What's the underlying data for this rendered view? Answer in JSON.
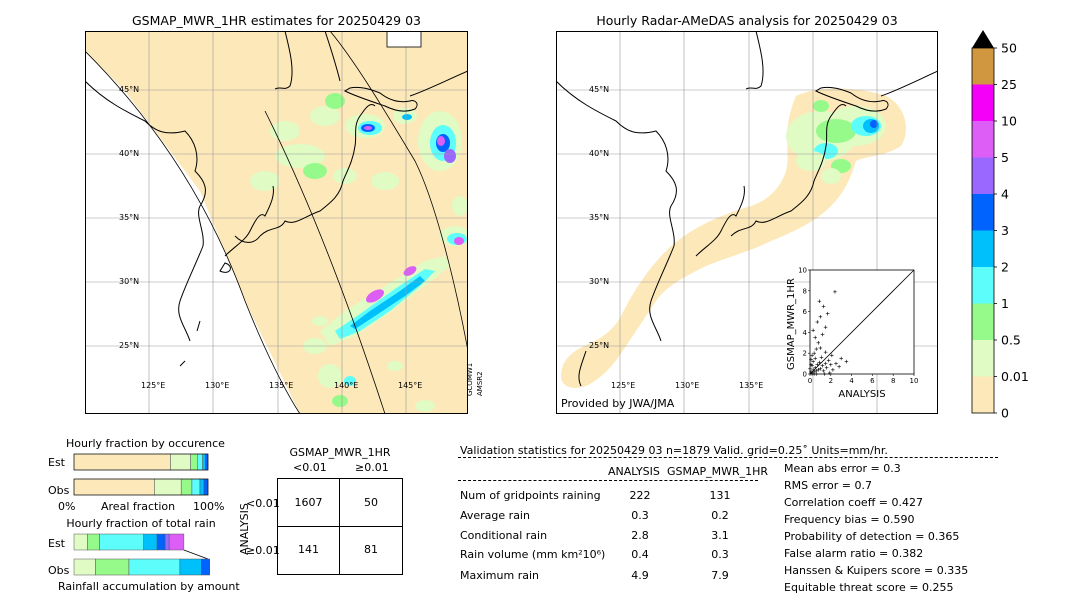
{
  "maps": {
    "left_title": "GSMAP_MWR_1HR estimates for 20250429 03",
    "right_title": "Hourly Radar-AMeDAS analysis for 20250429 03",
    "provided_by": "Provided by JWA/JMA",
    "lat_labels": [
      "45°N",
      "40°N",
      "35°N",
      "30°N",
      "25°N"
    ],
    "lon_labels_left": [
      "125°E",
      "130°E",
      "135°E",
      "140°E",
      "145°E"
    ],
    "lon_labels_right": [
      "125°E",
      "130°E",
      "135°E"
    ],
    "satellite_labels": [
      "GCOMW1",
      "AMSR2"
    ],
    "colors": {
      "none": "#fde8b9",
      "c001": "#e0fbc4",
      "c05": "#96fa8a",
      "c1": "#5cfdfb",
      "c2": "#00c0fb",
      "c3": "#0063fe",
      "c4": "#9a68ff",
      "c5": "#dc5ef6",
      "c10": "#f400f8",
      "c25": "#d19640",
      "c50": "#000000"
    }
  },
  "colorbar": {
    "labels": [
      "50",
      "25",
      "10",
      "5",
      "4",
      "3",
      "2",
      "1",
      "0.5",
      "0.01",
      "0"
    ]
  },
  "chart_data": [
    {
      "type": "scatter",
      "title": "",
      "xlabel": "ANALYSIS",
      "ylabel": "GSMAP_MWR_1HR",
      "xlim": [
        0,
        10
      ],
      "ylim": [
        0,
        10
      ],
      "ticks": [
        "0",
        "2",
        "4",
        "6",
        "8",
        "10"
      ],
      "points": [
        [
          0.1,
          0.2
        ],
        [
          0.2,
          0.1
        ],
        [
          0.3,
          0.4
        ],
        [
          0.4,
          0.2
        ],
        [
          0.5,
          0.6
        ],
        [
          0.6,
          0.3
        ],
        [
          0.7,
          0.9
        ],
        [
          0.2,
          0.8
        ],
        [
          0.3,
          1.2
        ],
        [
          0.5,
          1.5
        ],
        [
          0.8,
          0.4
        ],
        [
          0.9,
          1.1
        ],
        [
          1.0,
          0.5
        ],
        [
          1.1,
          1.6
        ],
        [
          0.4,
          2.0
        ],
        [
          0.6,
          2.4
        ],
        [
          0.2,
          1.8
        ],
        [
          1.2,
          0.8
        ],
        [
          1.3,
          0.3
        ],
        [
          1.5,
          1.0
        ],
        [
          1.6,
          0.6
        ],
        [
          1.8,
          1.3
        ],
        [
          2.0,
          0.9
        ],
        [
          2.2,
          0.4
        ],
        [
          2.5,
          1.0
        ],
        [
          2.8,
          0.7
        ],
        [
          3.0,
          1.5
        ],
        [
          3.5,
          1.2
        ],
        [
          1.0,
          2.5
        ],
        [
          0.8,
          3.0
        ],
        [
          0.5,
          3.5
        ],
        [
          1.2,
          3.8
        ],
        [
          0.3,
          4.2
        ],
        [
          1.5,
          4.5
        ],
        [
          0.7,
          5.0
        ],
        [
          1.0,
          5.5
        ],
        [
          1.7,
          5.8
        ],
        [
          1.3,
          6.5
        ],
        [
          0.9,
          7.0
        ],
        [
          2.4,
          7.9
        ],
        [
          1.5,
          2.1
        ],
        [
          2.1,
          1.8
        ],
        [
          0.1,
          0.9
        ],
        [
          0.0,
          0.5
        ],
        [
          0.2,
          0.0
        ],
        [
          0.4,
          0.0
        ],
        [
          0.6,
          0.0
        ],
        [
          1.4,
          0.0
        ],
        [
          1.9,
          0.1
        ],
        [
          0.1,
          1.4
        ]
      ]
    },
    {
      "type": "bar",
      "title": "Hourly fraction by occurence",
      "xlabel": "Areal fraction",
      "x_tick_labels": [
        "0%",
        "100%"
      ],
      "categories": [
        "Est",
        "Obs"
      ],
      "series": [
        {
          "color": "#fde8b9",
          "values": [
            0.72,
            0.6
          ]
        },
        {
          "color": "#e0fbc4",
          "values": [
            0.15,
            0.2
          ]
        },
        {
          "color": "#96fa8a",
          "values": [
            0.05,
            0.08
          ]
        },
        {
          "color": "#5cfdfb",
          "values": [
            0.04,
            0.06
          ]
        },
        {
          "color": "#00c0fb",
          "values": [
            0.02,
            0.03
          ]
        },
        {
          "color": "#0063fe",
          "values": [
            0.02,
            0.03
          ]
        }
      ]
    },
    {
      "type": "bar",
      "title": "Hourly fraction of total rain",
      "xlabel": "Rainfall accumulation by amount",
      "categories": [
        "Est",
        "Obs"
      ],
      "series": [
        {
          "color": "#e0fbc4",
          "values": [
            0.1,
            0.16
          ]
        },
        {
          "color": "#96fa8a",
          "values": [
            0.09,
            0.25
          ]
        },
        {
          "color": "#5cfdfb",
          "values": [
            0.33,
            0.38
          ]
        },
        {
          "color": "#00c0fb",
          "values": [
            0.1,
            0.16
          ]
        },
        {
          "color": "#0063fe",
          "values": [
            0.06,
            0.1
          ]
        },
        {
          "color": "#9a68ff",
          "values": [
            0.03,
            0.0
          ]
        },
        {
          "color": "#dc5ef6",
          "values": [
            0.11,
            0.0
          ]
        }
      ]
    }
  ],
  "contingency": {
    "title": "GSMAP_MWR_1HR",
    "col_labels": [
      "<0.01",
      "≥0.01"
    ],
    "row_title": "ANALYSIS",
    "row_labels": [
      "<0.01",
      "≥0.01"
    ],
    "cells": [
      [
        "1607",
        "50"
      ],
      [
        "141",
        "81"
      ]
    ]
  },
  "validation": {
    "header": "Validation statistics for 20250429 03  n=1879 Valid. grid=0.25˚ Units=mm/hr.",
    "col_analysis": "ANALYSIS",
    "col_gsmap": "GSMAP_MWR_1HR",
    "rows": [
      {
        "label": "Num of gridpoints raining",
        "analysis": "222",
        "gsmap": "131"
      },
      {
        "label": "Average rain",
        "analysis": "0.3",
        "gsmap": "0.2"
      },
      {
        "label": "Conditional rain",
        "analysis": "2.8",
        "gsmap": "3.1"
      },
      {
        "label": "Rain volume (mm km²10⁶)",
        "analysis": "0.4",
        "gsmap": "0.3"
      },
      {
        "label": "Maximum rain",
        "analysis": "4.9",
        "gsmap": "7.9"
      }
    ],
    "scores": [
      "Mean abs error =    0.3",
      "RMS error =    0.7",
      "Correlation coeff =  0.427",
      "Frequency bias =  0.590",
      "Probability of detection =  0.365",
      "False alarm ratio =  0.382",
      "Hanssen & Kuipers score =  0.335",
      "Equitable threat score =  0.255"
    ]
  }
}
